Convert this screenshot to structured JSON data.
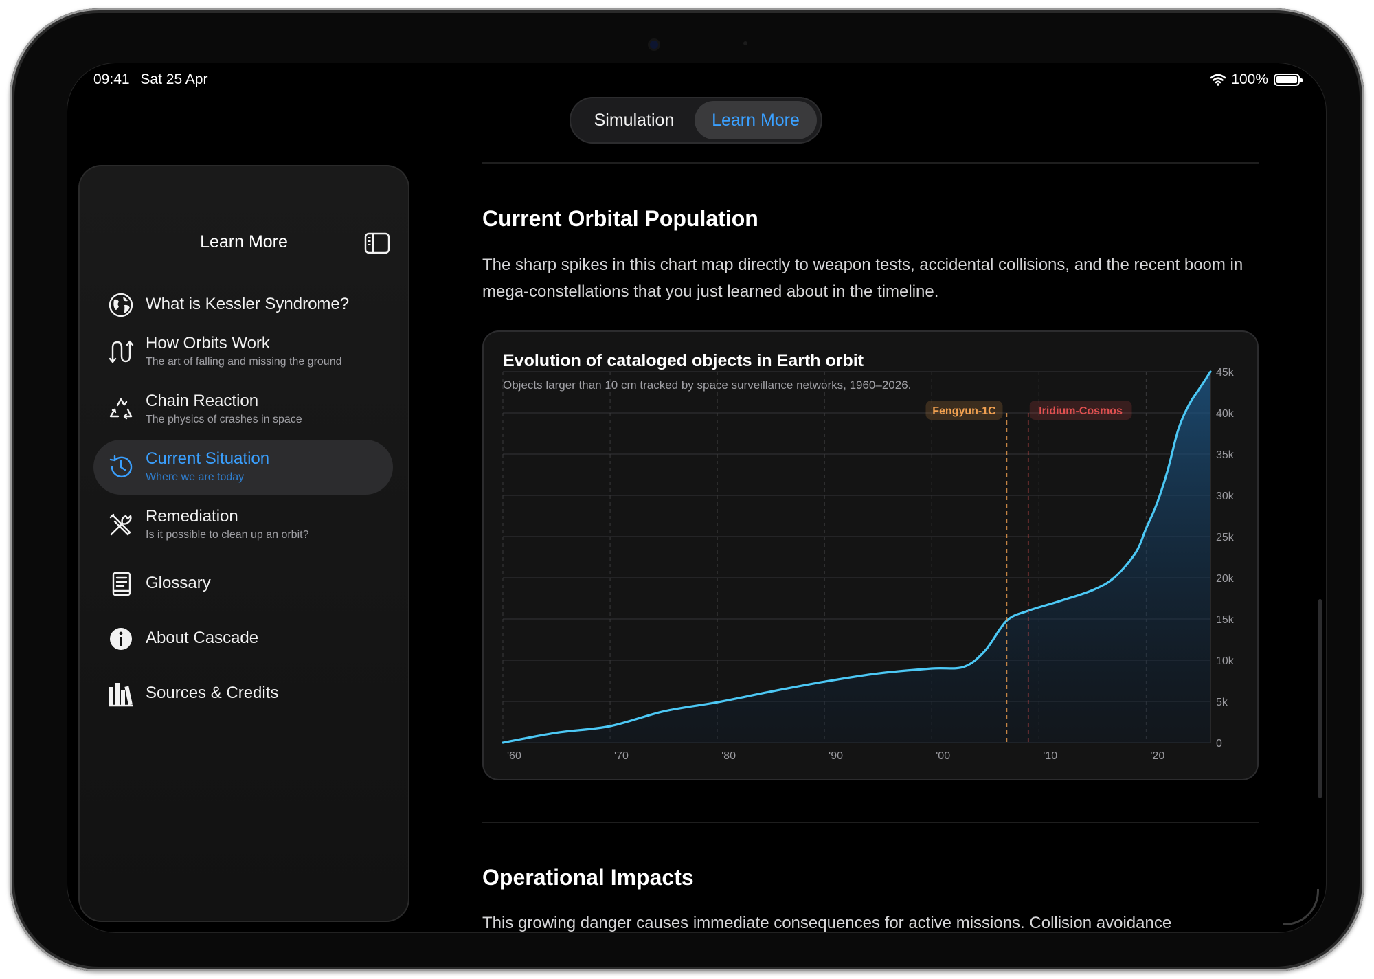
{
  "status": {
    "time": "09:41",
    "date": "Sat 25 Apr",
    "battery": "100%"
  },
  "segmented": {
    "tabs": [
      "Simulation",
      "Learn More"
    ],
    "selected": "Learn More"
  },
  "sidebar": {
    "title": "Learn More",
    "items": [
      {
        "label": "What is Kessler Syndrome?",
        "subtitle": "",
        "icon": "globe-icon",
        "active": false
      },
      {
        "label": "How Orbits Work",
        "subtitle": "The art of falling and missing the ground",
        "icon": "orbit-arrows-icon",
        "active": false
      },
      {
        "label": "Chain Reaction",
        "subtitle": "The physics of crashes in space",
        "icon": "recycle-icon",
        "active": false
      },
      {
        "label": "Current Situation",
        "subtitle": "Where we are today",
        "icon": "clock-history-icon",
        "active": true
      },
      {
        "label": "Remediation",
        "subtitle": "Is it possible to clean up an orbit?",
        "icon": "tools-icon",
        "active": false
      },
      {
        "label": "Glossary",
        "subtitle": "",
        "icon": "book-icon",
        "active": false
      },
      {
        "label": "About Cascade",
        "subtitle": "",
        "icon": "info-icon",
        "active": false
      },
      {
        "label": "Sources & Credits",
        "subtitle": "",
        "icon": "books-icon",
        "active": false
      }
    ]
  },
  "main": {
    "section1": {
      "title": "Current Orbital Population",
      "text": "The sharp spikes in this chart map directly to weapon tests, accidental collisions, and the recent boom in mega-constellations that you just learned about in the timeline."
    },
    "section2": {
      "title": "Operational Impacts",
      "text": "This growing danger causes immediate consequences for active missions. Collision avoidance"
    }
  },
  "chart_data": {
    "type": "area",
    "title": "Evolution of cataloged objects in Earth orbit",
    "subtitle": "Objects larger than 10 cm tracked by space surveillance networks, 1960–2026.",
    "x": [
      1960,
      1965,
      1970,
      1975,
      1980,
      1985,
      1990,
      1995,
      2000,
      2003,
      2005,
      2007,
      2009,
      2012,
      2015,
      2017,
      2019,
      2020,
      2021,
      2022,
      2023,
      2024,
      2025,
      2026
    ],
    "y": [
      0,
      1200,
      2000,
      3800,
      4900,
      6200,
      7400,
      8400,
      9000,
      9200,
      11200,
      14800,
      16000,
      17200,
      18500,
      20000,
      23000,
      26000,
      29000,
      33000,
      38000,
      41000,
      43000,
      45000
    ],
    "xlim": [
      1960,
      2026
    ],
    "ylim": [
      0,
      45000
    ],
    "x_ticks": [
      1960,
      1970,
      1980,
      1990,
      2000,
      2010,
      2020
    ],
    "x_tick_labels": [
      "'60",
      "'70",
      "'80",
      "'90",
      "'00",
      "'10",
      "'20"
    ],
    "y_ticks": [
      0,
      5000,
      10000,
      15000,
      20000,
      25000,
      30000,
      35000,
      40000,
      45000
    ],
    "y_tick_labels": [
      "0",
      "5k",
      "10k",
      "15k",
      "20k",
      "25k",
      "30k",
      "35k",
      "40k",
      "45k"
    ],
    "y_axis_side": "right",
    "grid": true,
    "line_color": "#4cc8f5",
    "events": [
      {
        "label": "Fengyun-1C",
        "x": 2007,
        "color": "#f0a050"
      },
      {
        "label": "Iridium-Cosmos",
        "x": 2009,
        "color": "#e05050"
      }
    ]
  }
}
